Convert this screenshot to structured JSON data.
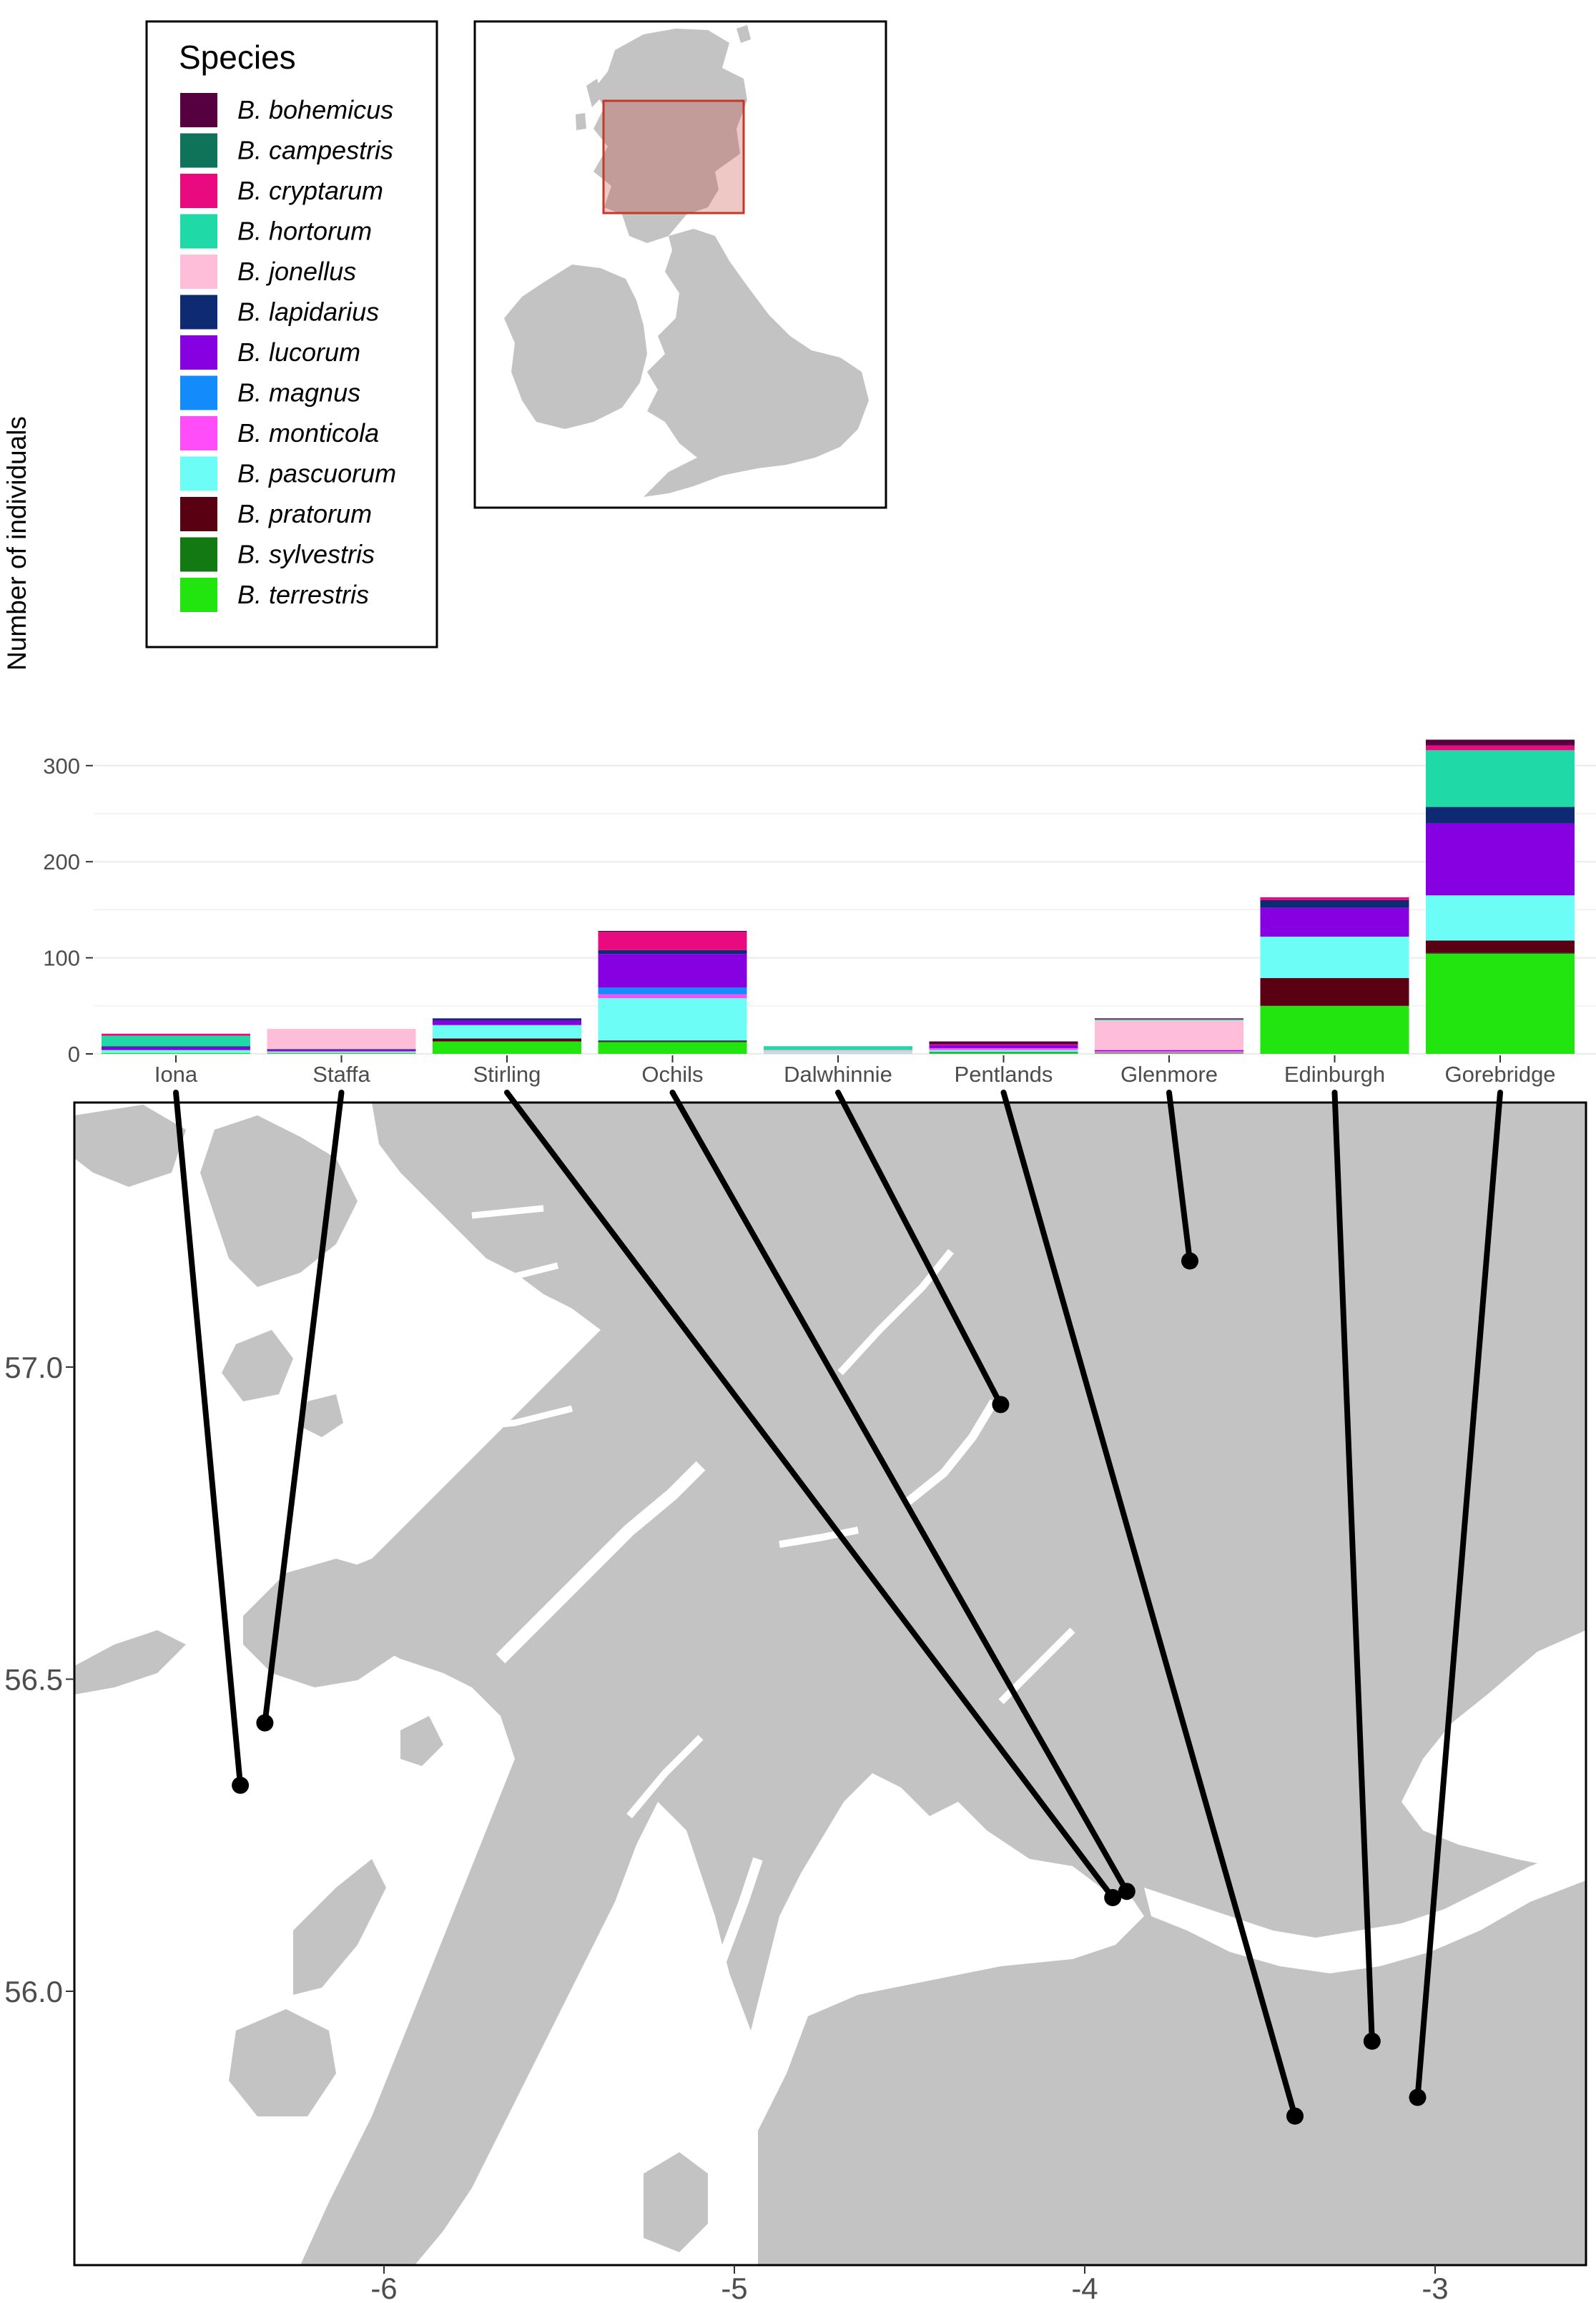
{
  "chart_data": [
    {
      "type": "bar",
      "stacked": true,
      "ylabel": "Number of individuals",
      "ylim": [
        0,
        330
      ],
      "yticks": [
        0,
        100,
        200,
        300
      ],
      "grid": true,
      "categories": [
        "Iona",
        "Staffa",
        "Stirling",
        "Ochils",
        "Dalwhinnie",
        "Pentlands",
        "Glenmore",
        "Edinburgh",
        "Gorebridge"
      ],
      "legend": {
        "title": "Species",
        "position": "top-left"
      },
      "series": [
        {
          "name": "B. terrestris",
          "color": "#22E510",
          "values": [
            1,
            1,
            13,
            12,
            0,
            1,
            1,
            50,
            104
          ]
        },
        {
          "name": "B. sylvestris",
          "color": "#137A13",
          "values": [
            0,
            0,
            0,
            1,
            0,
            1,
            0,
            0,
            1
          ]
        },
        {
          "name": "B. pratorum",
          "color": "#5A0013",
          "values": [
            0,
            0,
            3,
            1,
            0,
            0,
            0,
            29,
            13
          ]
        },
        {
          "name": "B. pascuorum",
          "color": "#6CFEF6",
          "values": [
            3,
            1,
            14,
            44,
            1,
            2,
            0,
            43,
            47
          ]
        },
        {
          "name": "B. monticola",
          "color": "#FF4EF9",
          "values": [
            0,
            1,
            0,
            4,
            0,
            2,
            2,
            0,
            0
          ]
        },
        {
          "name": "B. magnus",
          "color": "#148BFA",
          "values": [
            0,
            0,
            0,
            7,
            0,
            0,
            0,
            0,
            0
          ]
        },
        {
          "name": "B. lucorum",
          "color": "#8600E2",
          "values": [
            3,
            1,
            5,
            35,
            0,
            3,
            1,
            30,
            75
          ]
        },
        {
          "name": "B. lapidarius",
          "color": "#0E2A73",
          "values": [
            1,
            1,
            2,
            4,
            0,
            0,
            0,
            8,
            17
          ]
        },
        {
          "name": "B. jonellus",
          "color": "#FEBDD8",
          "values": [
            0,
            21,
            0,
            0,
            3,
            0,
            31,
            0,
            0
          ]
        },
        {
          "name": "B. hortorum",
          "color": "#1FD9A6",
          "values": [
            11,
            0,
            0,
            0,
            4,
            0,
            1,
            0,
            59
          ]
        },
        {
          "name": "B. cryptarum",
          "color": "#EA0A7F",
          "values": [
            2,
            0,
            0,
            19,
            0,
            1,
            0,
            3,
            5
          ]
        },
        {
          "name": "B. campestris",
          "color": "#0F735A",
          "values": [
            0,
            0,
            0,
            0,
            0,
            0,
            0,
            0,
            0
          ]
        },
        {
          "name": "B. bohemicus",
          "color": "#57003F",
          "values": [
            0,
            0,
            0,
            1,
            0,
            3,
            1,
            0,
            6
          ]
        }
      ]
    },
    {
      "type": "map",
      "xticks": [
        "-6",
        "-5",
        "-4",
        "-3"
      ],
      "yticks": [
        "56.0",
        "56.5",
        "57.0"
      ],
      "site_points": [
        {
          "site": "Iona",
          "lon": -6.41,
          "lat": 56.33
        },
        {
          "site": "Staffa",
          "lon": -6.34,
          "lat": 56.43
        },
        {
          "site": "Stirling",
          "lon": -3.92,
          "lat": 56.15
        },
        {
          "site": "Ochils",
          "lon": -3.88,
          "lat": 56.16
        },
        {
          "site": "Dalwhinnie",
          "lon": -4.24,
          "lat": 56.94
        },
        {
          "site": "Pentlands",
          "lon": -3.4,
          "lat": 55.8
        },
        {
          "site": "Glenmore",
          "lon": -3.7,
          "lat": 57.17
        },
        {
          "site": "Edinburgh",
          "lon": -3.18,
          "lat": 55.92
        },
        {
          "site": "Gorebridge",
          "lon": -3.05,
          "lat": 55.83
        }
      ],
      "land_color": "#C3C3C3",
      "inset": {
        "highlight_color": "#C0392B",
        "description_region": "Scotland study area"
      }
    }
  ]
}
